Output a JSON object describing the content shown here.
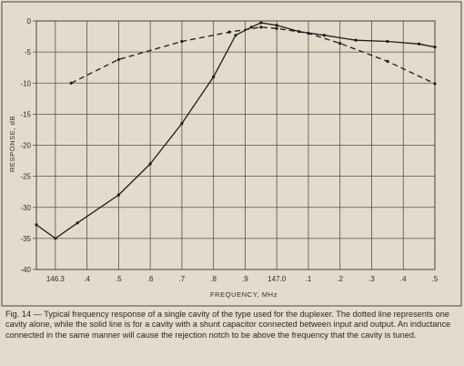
{
  "chart_data": {
    "type": "line",
    "title": "",
    "xlabel": "FREQUENCY, MHz",
    "ylabel": "RESPONSE, dB",
    "x_tick_labels": [
      "146.3",
      ".4",
      ".5",
      ".6",
      ".7",
      ".8",
      ".9",
      "147.0",
      ".1",
      ".2",
      ".3",
      ".4",
      ".5"
    ],
    "x_ticks": [
      146.3,
      146.4,
      146.5,
      146.6,
      146.7,
      146.8,
      146.9,
      147.0,
      147.1,
      147.2,
      147.3,
      147.4,
      147.5
    ],
    "xlim": [
      146.24,
      147.5
    ],
    "ylim": [
      -40,
      0
    ],
    "y_ticks": [
      0,
      -5,
      -10,
      -15,
      -20,
      -25,
      -30,
      -35,
      -40
    ],
    "y_tick_labels": [
      "0",
      "-5",
      "-10",
      "-15",
      "-20",
      "-25",
      "-30",
      "-35",
      "-40"
    ],
    "grid": true,
    "legend": "none",
    "series": [
      {
        "style": "solid",
        "color": "#1f1c19",
        "x": [
          146.24,
          146.3,
          146.37,
          146.5,
          146.6,
          146.7,
          146.8,
          146.87,
          146.92,
          146.95,
          147.0,
          147.07,
          147.15,
          147.25,
          147.35,
          147.45,
          147.5
        ],
        "y": [
          -32.8,
          -35.0,
          -32.5,
          -28.0,
          -23.0,
          -16.5,
          -9.0,
          -2.3,
          -1.0,
          -0.3,
          -0.7,
          -1.7,
          -2.3,
          -3.1,
          -3.3,
          -3.7,
          -4.2
        ]
      },
      {
        "style": "dashed",
        "color": "#1f1c19",
        "x": [
          146.35,
          146.5,
          146.7,
          146.85,
          146.95,
          147.0,
          147.1,
          147.2,
          147.35,
          147.5
        ],
        "y": [
          -10.0,
          -6.2,
          -3.3,
          -1.8,
          -1.0,
          -1.2,
          -2.0,
          -3.6,
          -6.5,
          -10.1
        ]
      }
    ]
  },
  "caption": "Fig. 14 — Typical frequency response of a single cavity of the type used for the duplexer. The dotted line represents one cavity alone, while the solid line is for a cavity with a shunt capacitor connected between input and output. An inductance connected in the same manner will cause the rejection notch to be above the frequency that the cavity is tuned.",
  "colors": {
    "paper": "#e3dccd",
    "ink": "#1f1c19",
    "grid": "#57514a"
  }
}
